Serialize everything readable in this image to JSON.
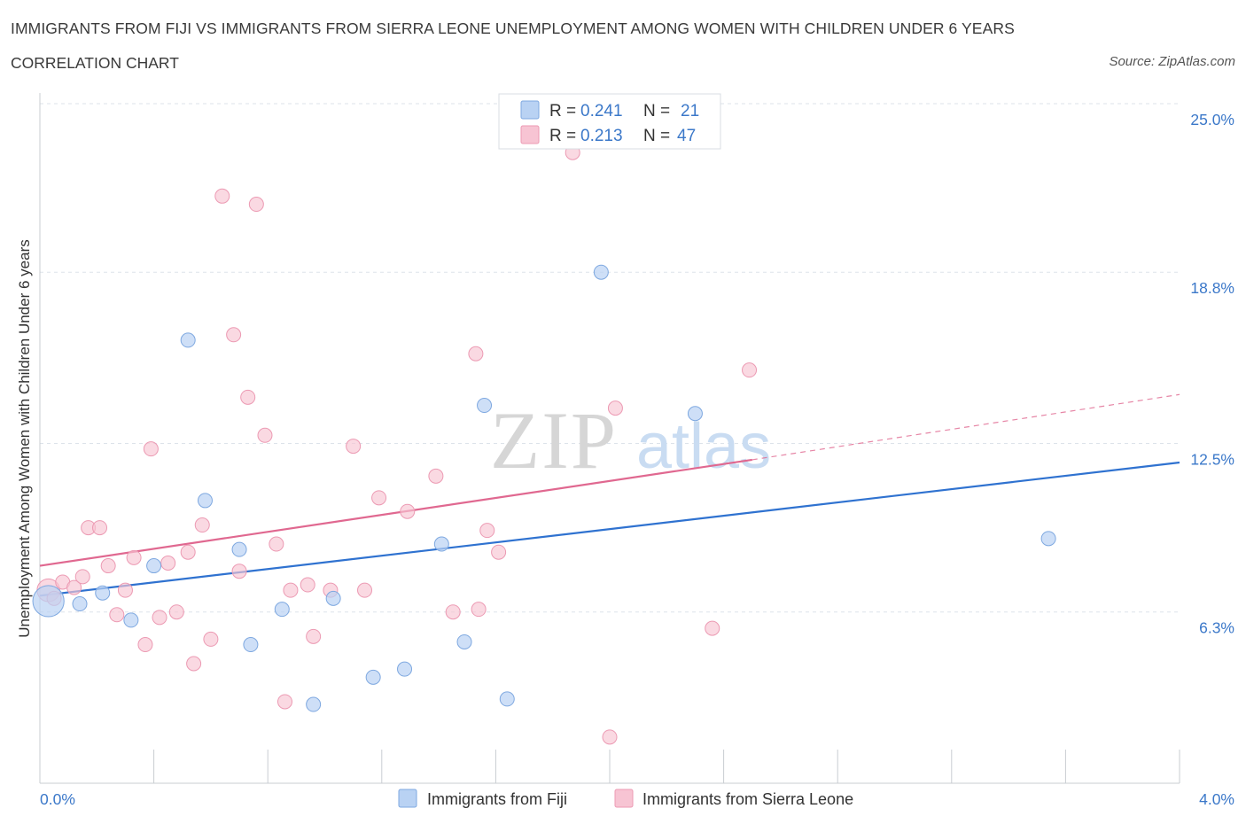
{
  "header": {
    "title": "IMMIGRANTS FROM FIJI VS IMMIGRANTS FROM SIERRA LEONE UNEMPLOYMENT AMONG WOMEN WITH CHILDREN UNDER 6 YEARS",
    "subtitle": "CORRELATION CHART",
    "source": "Source: ZipAtlas.com"
  },
  "watermark": {
    "zip": "ZIP",
    "atlas": "atlas"
  },
  "colors": {
    "fiji_fill": "#b9d2f3",
    "fiji_stroke": "#7ea8e0",
    "fiji_line": "#2f72d0",
    "sl_fill": "#f7c4d3",
    "sl_stroke": "#ec9ab3",
    "sl_line": "#e06890",
    "tick_text": "#3b78c9",
    "grid": "#dde3ea"
  },
  "legend": {
    "rows": [
      {
        "r_label": "R = ",
        "r_value": "0.241",
        "n_label": "N = ",
        "n_value": "21"
      },
      {
        "r_label": "R = ",
        "r_value": "0.213",
        "n_label": "N = ",
        "n_value": "47"
      }
    ]
  },
  "bottom_legend": [
    "Immigrants from Fiji",
    "Immigrants from Sierra Leone"
  ],
  "chart_data": {
    "type": "scatter",
    "title": "IMMIGRANTS FROM FIJI VS IMMIGRANTS FROM SIERRA LEONE UNEMPLOYMENT AMONG WOMEN WITH CHILDREN UNDER 6 YEARS",
    "subtitle": "CORRELATION CHART",
    "xlabel": "",
    "ylabel": "Unemployment Among Women with Children Under 6 years",
    "xlim": [
      0,
      4.0
    ],
    "ylim": [
      0,
      25.0
    ],
    "x_tick_labels": [
      "0.0%",
      "4.0%"
    ],
    "y_ticks": [
      6.3,
      12.5,
      18.8,
      25.0
    ],
    "y_tick_labels": [
      "6.3%",
      "12.5%",
      "18.8%",
      "25.0%"
    ],
    "grid": true,
    "legend_position": "top-center",
    "series": [
      {
        "name": "Immigrants from Fiji",
        "R": 0.241,
        "N": 21,
        "trend": {
          "x": [
            0.0,
            4.0
          ],
          "y": [
            6.9,
            11.8
          ]
        },
        "points": [
          [
            0.03,
            6.7,
            2.2
          ],
          [
            0.14,
            6.6,
            1
          ],
          [
            0.22,
            7.0,
            1
          ],
          [
            0.32,
            6.0,
            1
          ],
          [
            0.4,
            8.0,
            1
          ],
          [
            0.52,
            16.3,
            1
          ],
          [
            0.58,
            10.4,
            1
          ],
          [
            0.7,
            8.6,
            1
          ],
          [
            0.74,
            5.1,
            1
          ],
          [
            0.85,
            6.4,
            1
          ],
          [
            0.96,
            2.9,
            1
          ],
          [
            1.03,
            6.8,
            1
          ],
          [
            1.17,
            3.9,
            1
          ],
          [
            1.28,
            4.2,
            1
          ],
          [
            1.41,
            8.8,
            1
          ],
          [
            1.49,
            5.2,
            1
          ],
          [
            1.56,
            13.9,
            1
          ],
          [
            1.64,
            3.1,
            1
          ],
          [
            1.97,
            18.8,
            1
          ],
          [
            2.3,
            13.6,
            1
          ],
          [
            3.54,
            9.0,
            1
          ]
        ]
      },
      {
        "name": "Immigrants from Sierra Leone",
        "R": 0.213,
        "N": 47,
        "trend": {
          "x": [
            0.0,
            2.5
          ],
          "y": [
            8.0,
            11.9
          ]
        },
        "trend_dashed": {
          "x": [
            2.5,
            4.0
          ],
          "y": [
            11.9,
            14.3
          ]
        },
        "points": [
          [
            0.03,
            7.1,
            1.6
          ],
          [
            0.05,
            6.8,
            1
          ],
          [
            0.08,
            7.4,
            1
          ],
          [
            0.12,
            7.2,
            1
          ],
          [
            0.15,
            7.6,
            1
          ],
          [
            0.17,
            9.4,
            1
          ],
          [
            0.21,
            9.4,
            1
          ],
          [
            0.24,
            8.0,
            1
          ],
          [
            0.27,
            6.2,
            1
          ],
          [
            0.3,
            7.1,
            1
          ],
          [
            0.33,
            8.3,
            1
          ],
          [
            0.37,
            5.1,
            1
          ],
          [
            0.39,
            12.3,
            1
          ],
          [
            0.42,
            6.1,
            1
          ],
          [
            0.45,
            8.1,
            1
          ],
          [
            0.48,
            6.3,
            1
          ],
          [
            0.52,
            8.5,
            1
          ],
          [
            0.54,
            4.4,
            1
          ],
          [
            0.57,
            9.5,
            1
          ],
          [
            0.6,
            5.3,
            1
          ],
          [
            0.64,
            21.6,
            1
          ],
          [
            0.68,
            16.5,
            1
          ],
          [
            0.7,
            7.8,
            1
          ],
          [
            0.73,
            14.2,
            1
          ],
          [
            0.76,
            21.3,
            1
          ],
          [
            0.79,
            12.8,
            1
          ],
          [
            0.83,
            8.8,
            1
          ],
          [
            0.86,
            3.0,
            1
          ],
          [
            0.88,
            7.1,
            1
          ],
          [
            0.94,
            7.3,
            1
          ],
          [
            0.96,
            5.4,
            1
          ],
          [
            1.02,
            7.1,
            1
          ],
          [
            1.1,
            12.4,
            1
          ],
          [
            1.14,
            7.1,
            1
          ],
          [
            1.19,
            10.5,
            1
          ],
          [
            1.29,
            10.0,
            1
          ],
          [
            1.39,
            11.3,
            1
          ],
          [
            1.45,
            6.3,
            1
          ],
          [
            1.53,
            15.8,
            1
          ],
          [
            1.54,
            6.4,
            1
          ],
          [
            1.57,
            9.3,
            1
          ],
          [
            1.61,
            8.5,
            1
          ],
          [
            1.87,
            23.2,
            1
          ],
          [
            2.02,
            13.8,
            1
          ],
          [
            2.0,
            1.7,
            1
          ],
          [
            2.36,
            5.7,
            1
          ],
          [
            2.49,
            15.2,
            1
          ]
        ]
      }
    ]
  }
}
